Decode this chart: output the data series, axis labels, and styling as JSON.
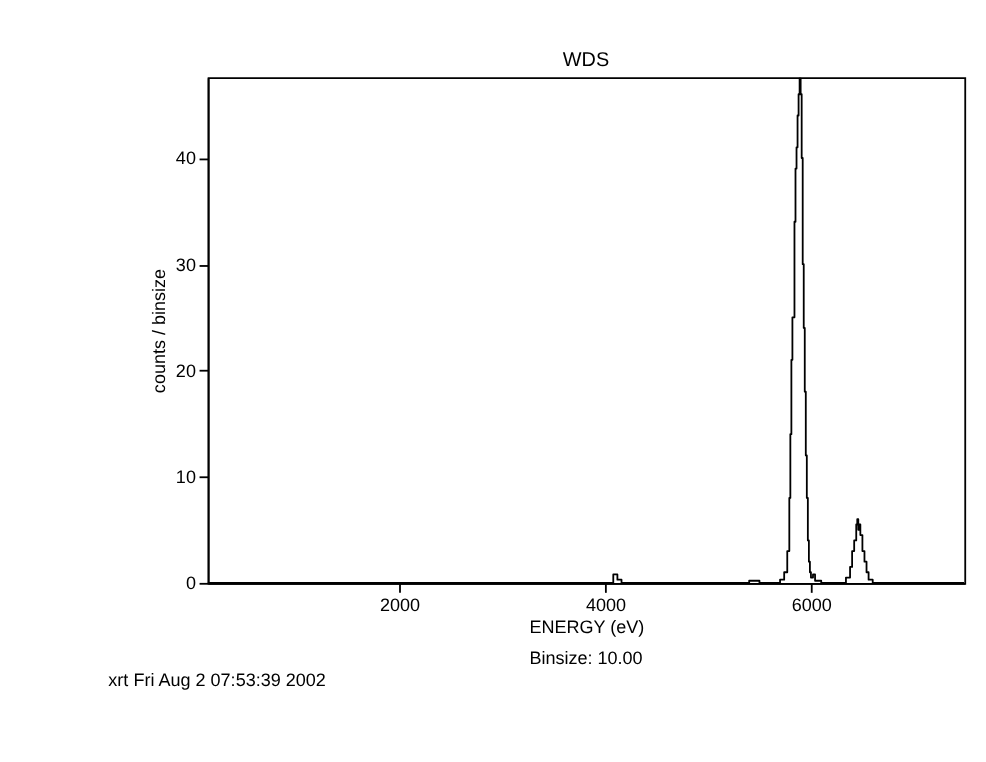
{
  "chart_data": {
    "type": "step",
    "title": "WDS",
    "xlabel": "ENERGY (eV)",
    "ylabel": "counts / binsize",
    "annotations": [
      "Binsize: 10.00",
      "xrt Fri Aug  2 07:53:39 2002"
    ],
    "x": [
      140,
      1000,
      2000,
      3000,
      4000,
      4080,
      4120,
      4160,
      5000,
      5400,
      5500,
      5700,
      5740,
      5770,
      5790,
      5800,
      5810,
      5820,
      5840,
      5850,
      5860,
      5870,
      5880,
      5890,
      5900,
      5910,
      5920,
      5930,
      5940,
      5950,
      5960,
      5970,
      5980,
      5990,
      6000,
      6020,
      6040,
      6100,
      6300,
      6340,
      6380,
      6400,
      6420,
      6440,
      6450,
      6460,
      6470,
      6480,
      6500,
      6520,
      6540,
      6560,
      6600,
      7490
    ],
    "series": [
      {
        "color": "#000000",
        "values": [
          0,
          0,
          0,
          0,
          0,
          0.8,
          0.3,
          0,
          0,
          0.2,
          0,
          0.3,
          1,
          3,
          8,
          14,
          21,
          25,
          34,
          39,
          41,
          44,
          46,
          47.5,
          46,
          40,
          30,
          24,
          18,
          12,
          8,
          4,
          2,
          1,
          0.5,
          0.8,
          0.2,
          0,
          0,
          0.5,
          1.5,
          3,
          4,
          5.5,
          6,
          5,
          5.5,
          4.5,
          3,
          2,
          1,
          0.3,
          0,
          0
        ]
      }
    ],
    "xlim": [
      140,
      7490
    ],
    "ylim": [
      0,
      47.6
    ],
    "xticks": [
      2000,
      4000,
      6000
    ],
    "yticks": [
      0,
      10,
      20,
      30,
      40
    ],
    "grid": false
  }
}
